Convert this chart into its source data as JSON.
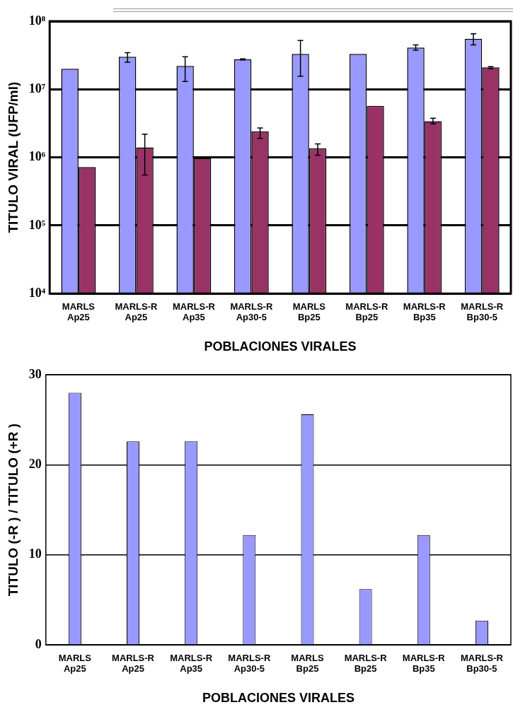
{
  "chart_data": [
    {
      "type": "bar",
      "xlabel": "POBLACIONES VIRALES",
      "ylabel": "TITULO VIRAL (UFP/ml)",
      "categories": [
        "MARLS\nAp25",
        "MARLS-R\nAp25",
        "MARLS-R\nAp35",
        "MARLS-R\nAp30-5",
        "MARLS\nBp25",
        "MARLS-R\nBp25",
        "MARLS-R\nBp35",
        "MARLS-R\nBp30-5"
      ],
      "series": [
        {
          "color": "#9999ff",
          "values": [
            20000000,
            30000000,
            22000000,
            27500000,
            33000000,
            33000000,
            41000000,
            55000000
          ],
          "errors": [
            null,
            [
              25000000,
              34500000
            ],
            [
              13000000,
              30000000
            ],
            [
              27000000,
              28000000
            ],
            [
              15600000,
              52000000
            ],
            null,
            [
              37500000,
              45000000
            ],
            [
              45000000,
              65500000
            ]
          ]
        },
        {
          "color": "#993366",
          "values": [
            720000,
            1400000,
            980000,
            2400000,
            1360000,
            5700000,
            3400000,
            21000000
          ],
          "errors": [
            null,
            [
              550000,
              2200000
            ],
            [
              960000,
              1000000
            ],
            [
              1900000,
              2700000
            ],
            [
              1080000,
              1580000
            ],
            null,
            [
              3100000,
              3750000
            ],
            [
              20000000,
              21500000
            ]
          ]
        }
      ],
      "log": "y",
      "ylim": [
        10000,
        100000000
      ],
      "yticks": [
        {
          "value": 10000,
          "label": "10⁴"
        },
        {
          "value": 100000,
          "label": "10⁵"
        },
        {
          "value": 1000000,
          "label": "10⁶"
        },
        {
          "value": 10000000,
          "label": "10⁷"
        },
        {
          "value": 100000000,
          "label": "10⁸"
        }
      ],
      "grid": "y",
      "legend": false
    },
    {
      "type": "bar",
      "xlabel": "POBLACIONES VIRALES",
      "ylabel": "TITULO (-R ) / TITULO (+R )",
      "categories": [
        "MARLS\nAp25",
        "MARLS-R\nAp25",
        "MARLS-R\nAp35",
        "MARLS-R\nAp30-5",
        "MARLS\nBp25",
        "MARLS-R\nBp25",
        "MARLS-R\nBp35",
        "MARLS-R\nBp30-5"
      ],
      "series": [
        {
          "color": "#9999ff",
          "values": [
            28,
            22.6,
            22.6,
            12.2,
            25.6,
            6.2,
            12.2,
            2.7
          ]
        }
      ],
      "ylim": [
        0,
        30
      ],
      "yticks": [
        0,
        10,
        20,
        30
      ],
      "grid": "y",
      "legend": false
    }
  ]
}
